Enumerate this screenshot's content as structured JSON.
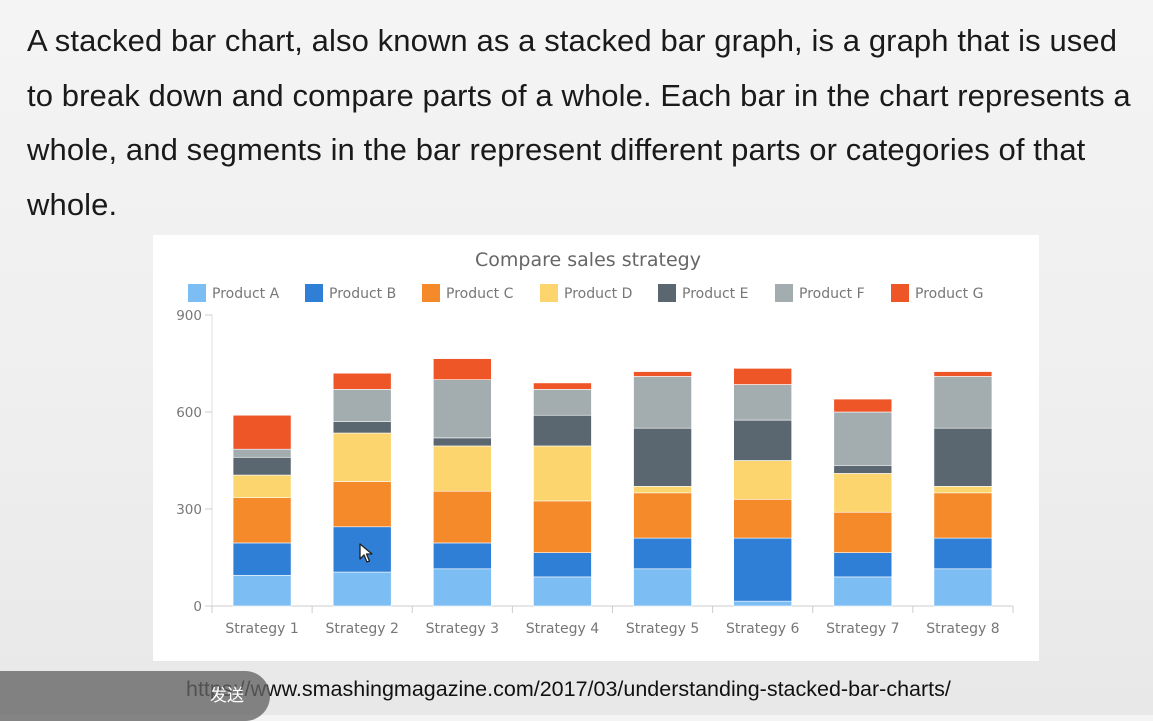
{
  "intro_text": "A stacked bar chart, also known as a stacked bar graph, is a graph that is used to break down and compare parts of a whole. Each bar in the chart represents a whole, and segments in the bar represent different parts or categories of that whole.",
  "source_url": "https://www.smashingmagazine.com/2017/03/understanding-stacked-bar-charts/",
  "send_button_label": "发送",
  "chart_data": {
    "type": "bar",
    "stacked": true,
    "title": "Compare sales strategy",
    "xlabel": "",
    "ylabel": "",
    "ylim": [
      0,
      900
    ],
    "yticks": [
      0,
      300,
      600,
      900
    ],
    "grid": false,
    "legend_position": "top",
    "categories": [
      "Strategy 1",
      "Strategy 2",
      "Strategy 3",
      "Strategy 4",
      "Strategy 5",
      "Strategy 6",
      "Strategy 7",
      "Strategy 8"
    ],
    "series": [
      {
        "name": "Product A",
        "color": "#7cbdf4",
        "values": [
          95,
          105,
          115,
          90,
          115,
          15,
          90,
          115
        ]
      },
      {
        "name": "Product B",
        "color": "#2f7fd6",
        "values": [
          100,
          140,
          80,
          75,
          95,
          195,
          75,
          95
        ]
      },
      {
        "name": "Product C",
        "color": "#f58a2b",
        "values": [
          140,
          140,
          160,
          160,
          140,
          120,
          125,
          140
        ]
      },
      {
        "name": "Product D",
        "color": "#fdd56e",
        "values": [
          70,
          150,
          140,
          170,
          20,
          120,
          120,
          20
        ]
      },
      {
        "name": "Product E",
        "color": "#5b6770",
        "values": [
          55,
          35,
          25,
          95,
          180,
          125,
          25,
          180
        ]
      },
      {
        "name": "Product F",
        "color": "#a3adb0",
        "values": [
          25,
          100,
          180,
          80,
          160,
          110,
          165,
          160
        ]
      },
      {
        "name": "Product G",
        "color": "#ee5527",
        "values": [
          105,
          50,
          65,
          20,
          15,
          50,
          40,
          15
        ]
      }
    ]
  }
}
